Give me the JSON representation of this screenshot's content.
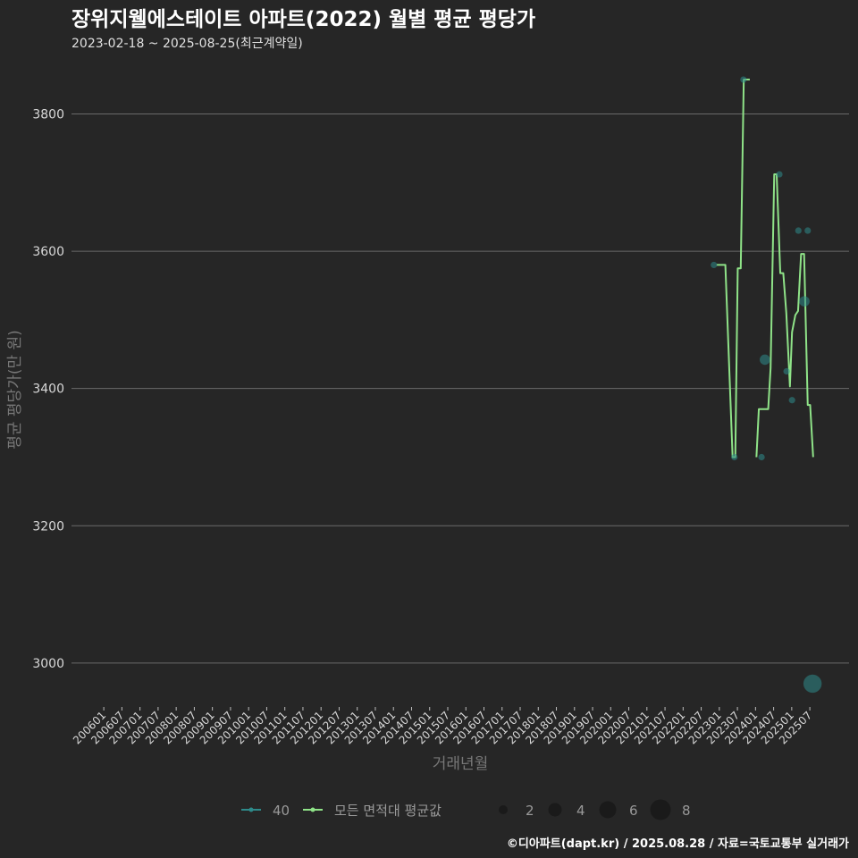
{
  "chart_data": {
    "type": "line",
    "title": "장위지웰에스테이트 아파트(2022) 월별 평균 평당가",
    "subtitle": "2023-02-18 ~ 2025-08-25(최근계약일)",
    "xlabel": "거래년월",
    "ylabel": "평균 평당가(만 원)",
    "ylim": [
      2940,
      3880
    ],
    "yticks": [
      3000,
      3200,
      3400,
      3600,
      3800
    ],
    "x_unit": "months since 2006-01",
    "xlim": [
      -10.7,
      247
    ],
    "xtick_labels": [
      "200601",
      "200607",
      "200701",
      "200707",
      "200801",
      "200807",
      "200901",
      "200907",
      "201001",
      "201007",
      "201101",
      "201107",
      "201201",
      "201207",
      "201301",
      "201307",
      "201401",
      "201407",
      "201501",
      "201507",
      "201601",
      "201607",
      "201701",
      "201707",
      "201801",
      "201807",
      "201901",
      "201907",
      "202001",
      "202007",
      "202101",
      "202107",
      "202201",
      "202207",
      "202301",
      "202307",
      "202401",
      "202407",
      "202501",
      "202507"
    ],
    "grid": true,
    "series": [
      {
        "name": "모든 면적대 평균값",
        "color": "#8fe388",
        "segments": [
          [
            [
              203.1,
              3580
            ],
            [
              206.0,
              3580
            ],
            [
              208.4,
              3300
            ],
            [
              209.3,
              3300
            ],
            [
              210.1,
              3575
            ],
            [
              211.1,
              3575
            ],
            [
              212.1,
              3850
            ],
            [
              214.1,
              3850
            ]
          ],
          [
            [
              216.3,
              3300
            ],
            [
              217.1,
              3370
            ],
            [
              220.2,
              3370
            ],
            [
              221.0,
              3430
            ],
            [
              222.2,
              3712
            ],
            [
              223.0,
              3712
            ],
            [
              224.2,
              3568
            ],
            [
              225.2,
              3568
            ],
            [
              226.2,
              3510
            ],
            [
              227.4,
              3403
            ],
            [
              228.1,
              3482
            ],
            [
              229.2,
              3507
            ],
            [
              230.1,
              3513
            ],
            [
              231.1,
              3596
            ],
            [
              232.1,
              3596
            ],
            [
              233.3,
              3376
            ],
            [
              234.1,
              3376
            ],
            [
              235.1,
              3300
            ]
          ]
        ]
      }
    ],
    "points": {
      "name": "40",
      "color": "#2e8a8a",
      "data": [
        {
          "x": 202.2,
          "y": 3580,
          "n": 1
        },
        {
          "x": 209.0,
          "y": 3300,
          "n": 1
        },
        {
          "x": 212.0,
          "y": 3850,
          "n": 1
        },
        {
          "x": 218.0,
          "y": 3300,
          "n": 1
        },
        {
          "x": 219.1,
          "y": 3442,
          "n": 3
        },
        {
          "x": 223.9,
          "y": 3712,
          "n": 1
        },
        {
          "x": 226.3,
          "y": 3425,
          "n": 1
        },
        {
          "x": 228.1,
          "y": 3383,
          "n": 1
        },
        {
          "x": 230.2,
          "y": 3630,
          "n": 1
        },
        {
          "x": 232.2,
          "y": 3527,
          "n": 3
        },
        {
          "x": 233.3,
          "y": 3630,
          "n": 1
        },
        {
          "x": 234.9,
          "y": 2970,
          "n": 7
        }
      ]
    },
    "legend": {
      "position": "bottom",
      "items": [
        "40",
        "모든 면적대 평균값"
      ],
      "size_items": [
        2,
        4,
        6,
        8
      ]
    },
    "footer": "©디아파트(dapt.kr) / 2025.08.28 / 자료=국토교통부 실거래가"
  }
}
